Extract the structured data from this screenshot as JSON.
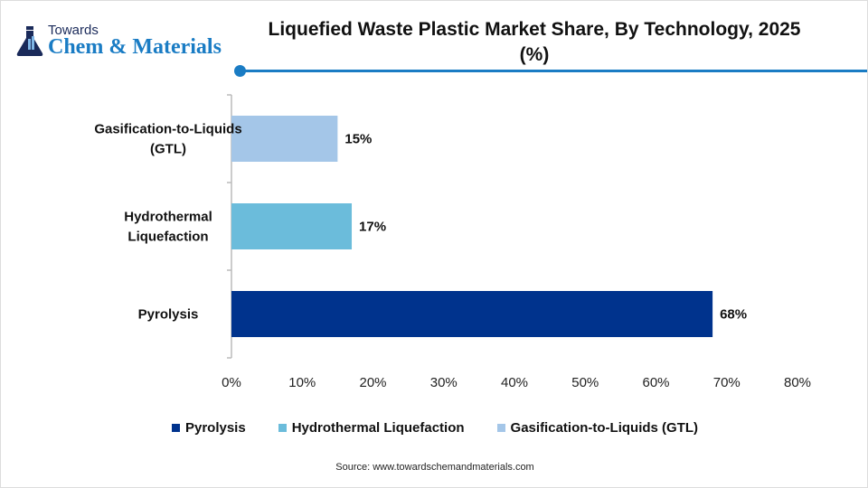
{
  "logo": {
    "line1": "Towards",
    "line2": "Chem & Materials"
  },
  "chart_data": {
    "type": "bar",
    "orientation": "horizontal",
    "title": "Liquefied Waste Plastic Market Share, By Technology, 2025 (%)",
    "categories": [
      "Gasification-to-Liquids (GTL)",
      "Hydrothermal Liquefaction",
      "Pyrolysis"
    ],
    "category_label_lines": [
      [
        "Gasification-to-Liquids",
        "(GTL)"
      ],
      [
        "Hydrothermal",
        "Liquefaction"
      ],
      [
        "Pyrolysis"
      ]
    ],
    "values": [
      15,
      17,
      68
    ],
    "data_labels": [
      "15%",
      "17%",
      "68%"
    ],
    "colors": [
      "#a4c6e8",
      "#6bbcdb",
      "#00338d"
    ],
    "xlim": [
      0,
      80
    ],
    "xticks": [
      "0%",
      "10%",
      "20%",
      "30%",
      "40%",
      "50%",
      "60%",
      "70%",
      "80%"
    ],
    "grid": false,
    "legend_position": "bottom",
    "legend": [
      {
        "label": "Pyrolysis",
        "color": "#00338d"
      },
      {
        "label": "Hydrothermal Liquefaction",
        "color": "#6bbcdb"
      },
      {
        "label": "Gasification-to-Liquids (GTL)",
        "color": "#a4c6e8"
      }
    ]
  },
  "source": "Source: www.towardschemandmaterials.com",
  "accent_color": "#1a7cc4"
}
